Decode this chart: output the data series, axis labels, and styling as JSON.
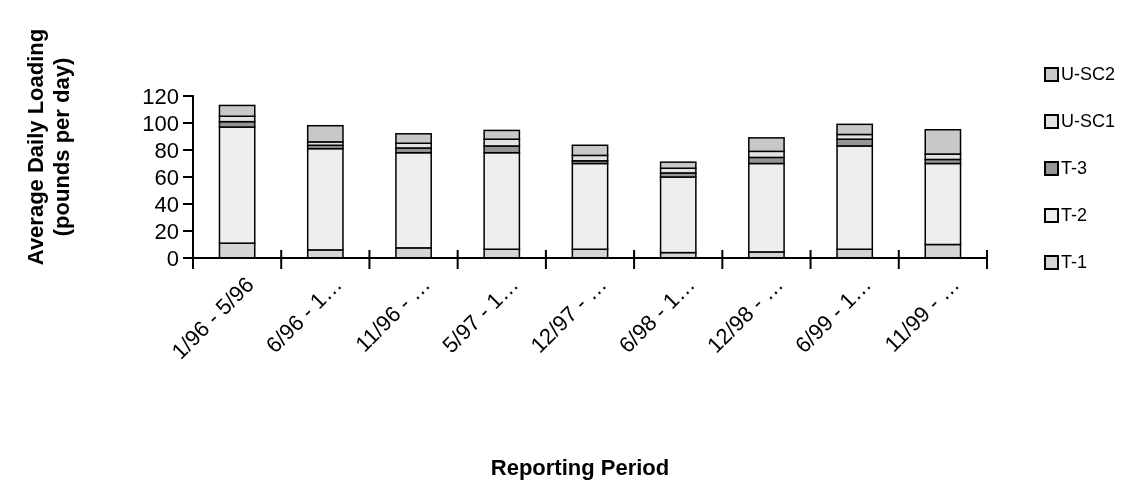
{
  "chart_data": {
    "type": "bar",
    "stacked": true,
    "xlabel": "Reporting Period",
    "ylabel": "Average Daily Loading (pounds per day)",
    "categories": [
      "1/96 - 5/96",
      "6/96 - 1…",
      "11/96 - …",
      "5/97 - 1…",
      "12/97 - …",
      "6/98 - 1…",
      "12/98 - …",
      "6/99 - 1…",
      "11/99 - …"
    ],
    "series": [
      {
        "name": "T-1",
        "color": "#d4d4d4",
        "values": [
          11,
          6,
          7.5,
          6.5,
          6.5,
          4,
          4.5,
          6.5,
          10
        ]
      },
      {
        "name": "T-2",
        "color": "#eeeeee",
        "values": [
          86,
          75,
          70.5,
          71.5,
          63.5,
          56,
          65.5,
          76.5,
          60
        ]
      },
      {
        "name": "T-3",
        "color": "#969696",
        "values": [
          4,
          2.5,
          3.5,
          5,
          2,
          3,
          4.5,
          5,
          3
        ]
      },
      {
        "name": "U-SC1",
        "color": "#e2e2e2",
        "values": [
          4,
          2.5,
          3.5,
          5,
          4,
          3.5,
          4.5,
          3.5,
          4
        ]
      },
      {
        "name": "U-SC2",
        "color": "#c8c8c8",
        "values": [
          8,
          12,
          7,
          6.5,
          7.5,
          4.5,
          10,
          7.5,
          18
        ]
      }
    ],
    "ylim": [
      0,
      120
    ],
    "yticks": [
      0,
      20,
      40,
      60,
      80,
      100,
      120
    ],
    "grid": false,
    "legend": "right"
  }
}
